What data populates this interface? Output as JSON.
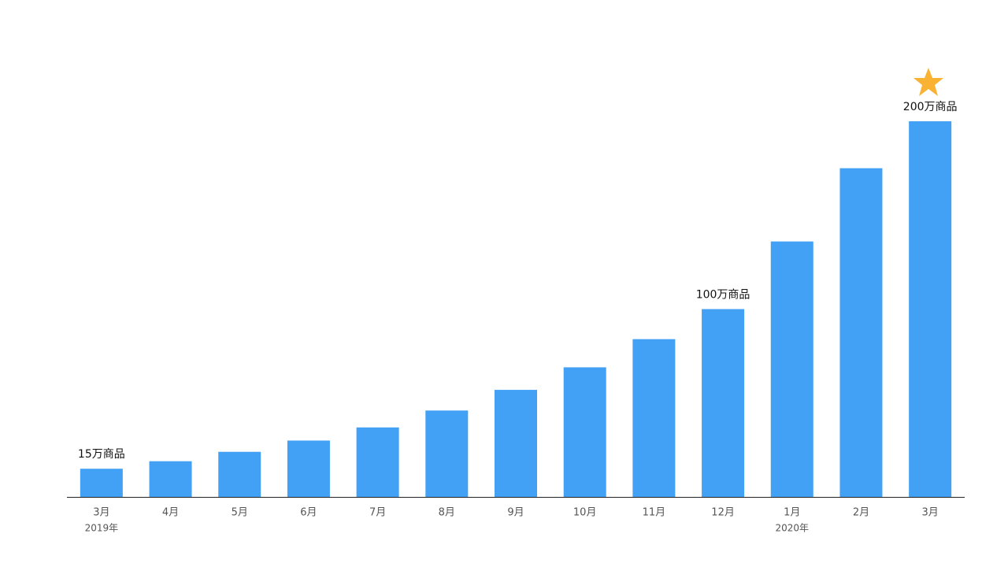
{
  "chart_data": {
    "type": "bar",
    "categories": [
      "3月",
      "4月",
      "5月",
      "6月",
      "7月",
      "8月",
      "9月",
      "10月",
      "11月",
      "12月",
      "1月",
      "2月",
      "3月"
    ],
    "year_labels": [
      "2019年",
      null,
      null,
      null,
      null,
      null,
      null,
      null,
      null,
      null,
      "2020年",
      null,
      null
    ],
    "values": [
      15,
      19,
      24,
      30,
      37,
      46,
      57,
      69,
      84,
      100,
      136,
      175,
      200
    ],
    "value_labels": [
      "15万商品",
      null,
      null,
      null,
      null,
      null,
      null,
      null,
      null,
      "100万商品",
      null,
      null,
      "200万商品"
    ],
    "color": "#42a0f5"
  }
}
